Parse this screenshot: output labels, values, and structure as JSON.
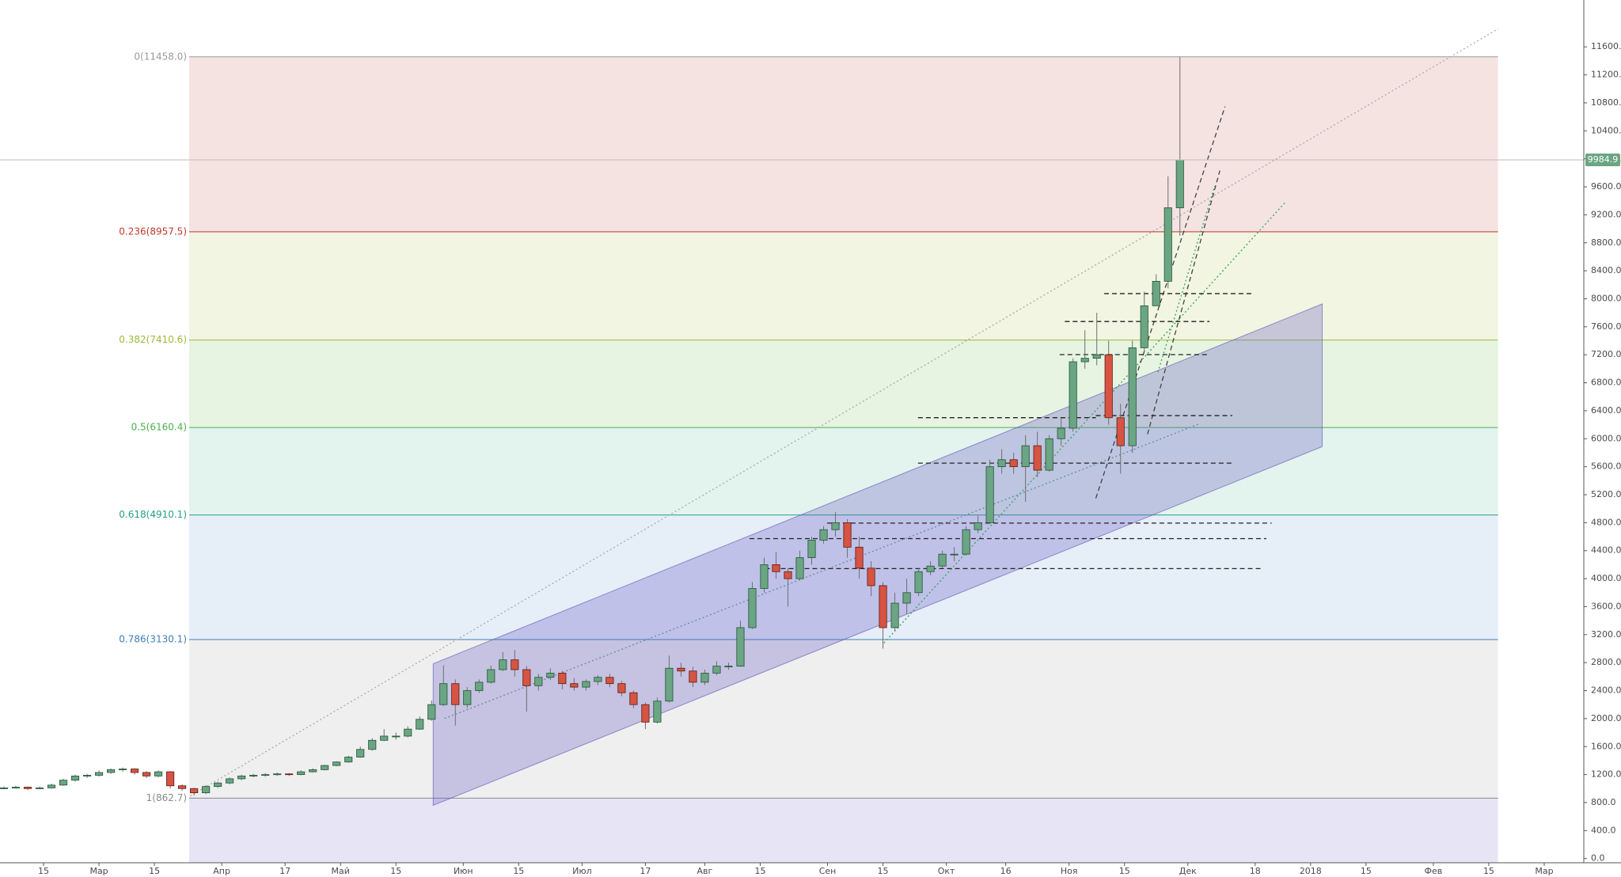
{
  "chart_data": {
    "type": "candlestick",
    "xlim": [
      34,
      434
    ],
    "ylim": [
      -60,
      12270
    ],
    "xticks": [
      {
        "value": 45,
        "label": "15"
      },
      {
        "value": 59,
        "label": "Мар"
      },
      {
        "value": 73,
        "label": "15"
      },
      {
        "value": 90,
        "label": "Апр"
      },
      {
        "value": 106,
        "label": "17"
      },
      {
        "value": 120,
        "label": "Май"
      },
      {
        "value": 134,
        "label": "15"
      },
      {
        "value": 151,
        "label": "Июн"
      },
      {
        "value": 165,
        "label": "15"
      },
      {
        "value": 181,
        "label": "Июл"
      },
      {
        "value": 197,
        "label": "17"
      },
      {
        "value": 212,
        "label": "Авг"
      },
      {
        "value": 226,
        "label": "15"
      },
      {
        "value": 243,
        "label": "Сен"
      },
      {
        "value": 257,
        "label": "15"
      },
      {
        "value": 273,
        "label": "Окт"
      },
      {
        "value": 288,
        "label": "16"
      },
      {
        "value": 304,
        "label": "Ноя"
      },
      {
        "value": 318,
        "label": "15"
      },
      {
        "value": 334,
        "label": "Дек"
      },
      {
        "value": 351,
        "label": "18"
      },
      {
        "value": 365,
        "label": "2018"
      },
      {
        "value": 379,
        "label": "15"
      },
      {
        "value": 396,
        "label": "Фев"
      },
      {
        "value": 410,
        "label": "15"
      },
      {
        "value": 424,
        "label": "Мар"
      }
    ],
    "yticks": [
      {
        "value": 0,
        "label": "0.0"
      },
      {
        "value": 400,
        "label": "400.0"
      },
      {
        "value": 800,
        "label": "800.0"
      },
      {
        "value": 1200,
        "label": "1200.0"
      },
      {
        "value": 1600,
        "label": "1600.0"
      },
      {
        "value": 2000,
        "label": "2000.0"
      },
      {
        "value": 2400,
        "label": "2400.0"
      },
      {
        "value": 2800,
        "label": "2800.0"
      },
      {
        "value": 3200,
        "label": "3200.0"
      },
      {
        "value": 3600,
        "label": "3600.0"
      },
      {
        "value": 4000,
        "label": "4000.0"
      },
      {
        "value": 4400,
        "label": "4400.0"
      },
      {
        "value": 4800,
        "label": "4800.0"
      },
      {
        "value": 5200,
        "label": "5200.0"
      },
      {
        "value": 5600,
        "label": "5600.0"
      },
      {
        "value": 6000,
        "label": "6000.0"
      },
      {
        "value": 6400,
        "label": "6400.0"
      },
      {
        "value": 6800,
        "label": "6800.0"
      },
      {
        "value": 7200,
        "label": "7200.0"
      },
      {
        "value": 7600,
        "label": "7600.0"
      },
      {
        "value": 8000,
        "label": "8000.0"
      },
      {
        "value": 8400,
        "label": "8400.0"
      },
      {
        "value": 8800,
        "label": "8800.0"
      },
      {
        "value": 9200,
        "label": "9200.0"
      },
      {
        "value": 9600,
        "label": "9600.0"
      },
      {
        "value": 10000,
        "label": "10000.0"
      },
      {
        "value": 10400,
        "label": "10400.0"
      },
      {
        "value": 10800,
        "label": "10800.0"
      },
      {
        "value": 11200,
        "label": "11200.0"
      },
      {
        "value": 11600,
        "label": "11600.0"
      }
    ],
    "up_color": "#6ba583",
    "down_color": "#d75442",
    "last_price": {
      "value": 9984.9,
      "label": "9984.9",
      "color": "#6ba583"
    },
    "fib_levels": [
      {
        "label": "0(11458.0)",
        "value": 11458.0,
        "color": "#9a9a9a",
        "fill": "#f5e3e2"
      },
      {
        "label": "0.236(8957.5)",
        "value": 8957.5,
        "color": "#c0392b",
        "fill": "#f1f5e1"
      },
      {
        "label": "0.382(7410.6)",
        "value": 7410.6,
        "color": "#9cbb3a",
        "fill": "#e6f4e1"
      },
      {
        "label": "0.5(6160.4)",
        "value": 6160.4,
        "color": "#4caf50",
        "fill": "#e3f3ee"
      },
      {
        "label": "0.618(4910.1)",
        "value": 4910.1,
        "color": "#26a085",
        "fill": "#e6eef8"
      },
      {
        "label": "0.786(3130.1)",
        "value": 3130.1,
        "color": "#3d7fb5",
        "fill": "#efefef"
      },
      {
        "label": "1(862.7)",
        "value": 862.7,
        "color": "#8a8a8a",
        "fill": "#e7e5f5"
      }
    ],
    "x": [
      35,
      38,
      41,
      44,
      47,
      50,
      53,
      56,
      59,
      62,
      65,
      68,
      71,
      74,
      77,
      80,
      83,
      86,
      89,
      92,
      95,
      98,
      101,
      104,
      107,
      110,
      113,
      116,
      119,
      122,
      125,
      128,
      131,
      134,
      137,
      140,
      143,
      146,
      149,
      152,
      155,
      158,
      161,
      164,
      167,
      170,
      173,
      176,
      179,
      182,
      185,
      188,
      191,
      194,
      197,
      200,
      203,
      206,
      209,
      212,
      215,
      218,
      221,
      224,
      227,
      230,
      233,
      236,
      239,
      242,
      245,
      248,
      251,
      254,
      257,
      260,
      263,
      266,
      269,
      272,
      275,
      278,
      281,
      284,
      287,
      290,
      293,
      296,
      299,
      302,
      305,
      308,
      311,
      314,
      317,
      320,
      323,
      326,
      329,
      332
    ],
    "candles": [
      [
        1000,
        1030,
        990,
        1010
      ],
      [
        1010,
        1040,
        1000,
        1020
      ],
      [
        1020,
        1030,
        980,
        1000
      ],
      [
        1000,
        1030,
        990,
        1010
      ],
      [
        1010,
        1070,
        1000,
        1050
      ],
      [
        1050,
        1140,
        1040,
        1120
      ],
      [
        1120,
        1200,
        1100,
        1180
      ],
      [
        1180,
        1210,
        1150,
        1190
      ],
      [
        1190,
        1260,
        1170,
        1230
      ],
      [
        1230,
        1290,
        1210,
        1270
      ],
      [
        1270,
        1300,
        1240,
        1280
      ],
      [
        1280,
        1290,
        1200,
        1230
      ],
      [
        1230,
        1250,
        1150,
        1180
      ],
      [
        1180,
        1260,
        1160,
        1240
      ],
      [
        1240,
        1250,
        1000,
        1040
      ],
      [
        1040,
        1060,
        970,
        1000
      ],
      [
        1000,
        1010,
        900,
        940
      ],
      [
        940,
        1050,
        920,
        1030
      ],
      [
        1030,
        1100,
        1010,
        1080
      ],
      [
        1080,
        1160,
        1060,
        1140
      ],
      [
        1140,
        1200,
        1120,
        1180
      ],
      [
        1180,
        1210,
        1160,
        1190
      ],
      [
        1190,
        1220,
        1170,
        1200
      ],
      [
        1200,
        1230,
        1180,
        1210
      ],
      [
        1210,
        1220,
        1180,
        1200
      ],
      [
        1200,
        1260,
        1190,
        1240
      ],
      [
        1240,
        1290,
        1230,
        1270
      ],
      [
        1270,
        1340,
        1260,
        1330
      ],
      [
        1330,
        1390,
        1320,
        1380
      ],
      [
        1380,
        1470,
        1370,
        1450
      ],
      [
        1450,
        1600,
        1440,
        1560
      ],
      [
        1560,
        1720,
        1540,
        1690
      ],
      [
        1690,
        1850,
        1680,
        1750
      ],
      [
        1750,
        1800,
        1700,
        1750
      ],
      [
        1750,
        1890,
        1730,
        1850
      ],
      [
        1850,
        2030,
        1840,
        1990
      ],
      [
        1990,
        2260,
        1970,
        2200
      ],
      [
        2200,
        2760,
        2180,
        2500
      ],
      [
        2500,
        2560,
        1900,
        2200
      ],
      [
        2200,
        2450,
        2150,
        2400
      ],
      [
        2400,
        2560,
        2370,
        2520
      ],
      [
        2520,
        2760,
        2500,
        2700
      ],
      [
        2700,
        2950,
        2680,
        2840
      ],
      [
        2840,
        2980,
        2600,
        2700
      ],
      [
        2700,
        2750,
        2100,
        2470
      ],
      [
        2470,
        2640,
        2400,
        2590
      ],
      [
        2590,
        2720,
        2550,
        2650
      ],
      [
        2650,
        2680,
        2420,
        2500
      ],
      [
        2500,
        2580,
        2400,
        2450
      ],
      [
        2450,
        2560,
        2400,
        2530
      ],
      [
        2530,
        2620,
        2480,
        2590
      ],
      [
        2590,
        2640,
        2450,
        2500
      ],
      [
        2500,
        2540,
        2320,
        2370
      ],
      [
        2370,
        2400,
        2150,
        2200
      ],
      [
        2200,
        2230,
        1850,
        1950
      ],
      [
        1950,
        2300,
        1930,
        2250
      ],
      [
        2250,
        2900,
        2230,
        2720
      ],
      [
        2720,
        2800,
        2600,
        2680
      ],
      [
        2680,
        2740,
        2450,
        2520
      ],
      [
        2520,
        2700,
        2480,
        2650
      ],
      [
        2650,
        2820,
        2620,
        2750
      ],
      [
        2750,
        2800,
        2700,
        2750
      ],
      [
        2750,
        3400,
        2740,
        3300
      ],
      [
        3300,
        3950,
        3280,
        3860
      ],
      [
        3860,
        4300,
        3800,
        4200
      ],
      [
        4200,
        4380,
        4000,
        4100
      ],
      [
        4100,
        4150,
        3600,
        4000
      ],
      [
        4000,
        4400,
        3980,
        4300
      ],
      [
        4300,
        4600,
        4200,
        4550
      ],
      [
        4550,
        4750,
        4500,
        4700
      ],
      [
        4700,
        4950,
        4600,
        4800
      ],
      [
        4800,
        4850,
        4300,
        4450
      ],
      [
        4450,
        4600,
        4000,
        4150
      ],
      [
        4150,
        4250,
        3750,
        3900
      ],
      [
        3900,
        3950,
        3000,
        3300
      ],
      [
        3300,
        3800,
        3250,
        3650
      ],
      [
        3650,
        4000,
        3500,
        3800
      ],
      [
        3800,
        4150,
        3750,
        4100
      ],
      [
        4100,
        4250,
        4050,
        4180
      ],
      [
        4180,
        4400,
        4150,
        4350
      ],
      [
        4350,
        4450,
        4250,
        4350
      ],
      [
        4350,
        4750,
        4330,
        4700
      ],
      [
        4700,
        4900,
        4650,
        4800
      ],
      [
        4800,
        5700,
        4780,
        5600
      ],
      [
        5600,
        5850,
        5500,
        5700
      ],
      [
        5700,
        5800,
        5500,
        5600
      ],
      [
        5600,
        6050,
        5100,
        5900
      ],
      [
        5900,
        6100,
        5450,
        5550
      ],
      [
        5550,
        6050,
        5530,
        6000
      ],
      [
        6000,
        6300,
        5900,
        6150
      ],
      [
        6150,
        7150,
        6100,
        7100
      ],
      [
        7100,
        7550,
        7000,
        7150
      ],
      [
        7150,
        7800,
        7050,
        7200
      ],
      [
        7200,
        7400,
        6200,
        6300
      ],
      [
        6300,
        6500,
        5500,
        5900
      ],
      [
        5900,
        7400,
        5800,
        7300
      ],
      [
        7300,
        8100,
        7250,
        7900
      ],
      [
        7900,
        8350,
        7900,
        8250
      ],
      [
        8250,
        9750,
        8150,
        9300
      ],
      [
        9300,
        11458,
        8900,
        9984.9
      ]
    ]
  }
}
